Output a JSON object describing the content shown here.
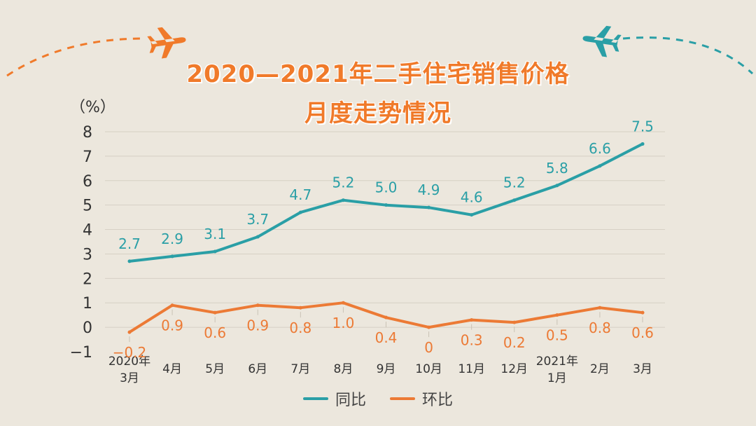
{
  "title": {
    "line1": "2020—2021年二手住宅销售价格",
    "line2": "月度走势情况"
  },
  "colors": {
    "background": "#ece7dd",
    "title": "#f07a2a",
    "yoy": "#2a9fa6",
    "mom": "#ec7a35",
    "grid": "#d6d0c4",
    "axis_text": "#333333",
    "dashed_arc_orange": "#f07a2a",
    "dashed_arc_teal": "#2a9fa6"
  },
  "icons": {
    "left": "airplane-icon",
    "right": "airplane-icon"
  },
  "chart_data": {
    "type": "line",
    "ylabel": "（%）",
    "ylim": [
      -1,
      8
    ],
    "yticks": [
      -1,
      0,
      1,
      2,
      3,
      4,
      5,
      6,
      7,
      8
    ],
    "grid": true,
    "legend_position": "bottom-center",
    "categories": [
      [
        "2020年",
        "3月"
      ],
      [
        "4月"
      ],
      [
        "5月"
      ],
      [
        "6月"
      ],
      [
        "7月"
      ],
      [
        "8月"
      ],
      [
        "9月"
      ],
      [
        "10月"
      ],
      [
        "11月"
      ],
      [
        "12月"
      ],
      [
        "2021年",
        "1月"
      ],
      [
        "2月"
      ],
      [
        "3月"
      ]
    ],
    "series": [
      {
        "name": "同比",
        "color": "#2a9fa6",
        "values": [
          2.7,
          2.9,
          3.1,
          3.7,
          4.7,
          5.2,
          5.0,
          4.9,
          4.6,
          5.2,
          5.8,
          6.6,
          7.5
        ],
        "labels": [
          "2.7",
          "2.9",
          "3.1",
          "3.7",
          "4.7",
          "5.2",
          "5.0",
          "4.9",
          "4.6",
          "5.2",
          "5.8",
          "6.6",
          "7.5"
        ]
      },
      {
        "name": "环比",
        "color": "#ec7a35",
        "values": [
          -0.2,
          0.9,
          0.6,
          0.9,
          0.8,
          1.0,
          0.4,
          0.0,
          0.3,
          0.2,
          0.5,
          0.8,
          0.6
        ],
        "labels": [
          "−0.2",
          "0.9",
          "0.6",
          "0.9",
          "0.8",
          "1.0",
          "0.4",
          "0",
          "0.3",
          "0.2",
          "0.5",
          "0.8",
          "0.6"
        ]
      }
    ]
  }
}
